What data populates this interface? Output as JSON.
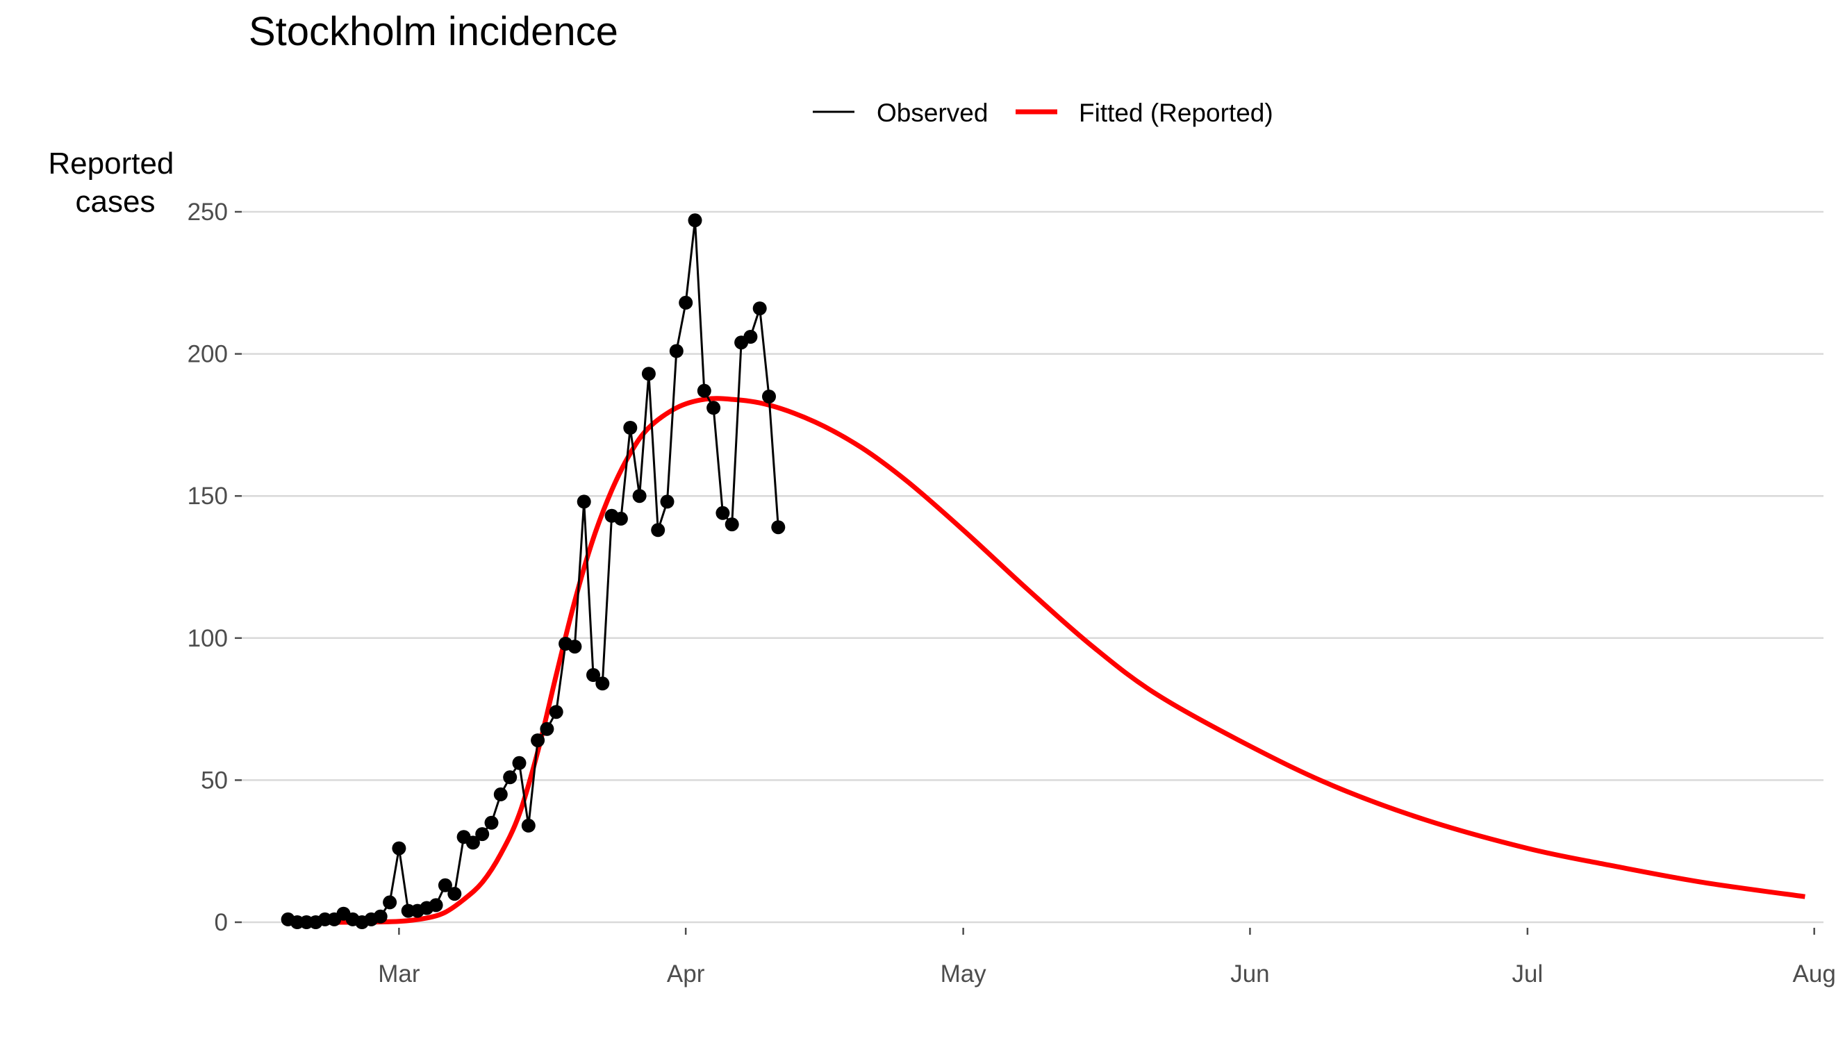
{
  "chart_data": {
    "type": "line",
    "title": "Stockholm incidence",
    "ylabel_lines": [
      "Reported",
      "cases"
    ],
    "xlabel": "",
    "ylim": [
      0,
      250
    ],
    "yticks": [
      0,
      50,
      100,
      150,
      200,
      250
    ],
    "xlim": [
      "2020-02-13",
      "2020-08-02"
    ],
    "xticks": [
      {
        "date": "2020-03-01",
        "label": "Mar"
      },
      {
        "date": "2020-04-01",
        "label": "Apr"
      },
      {
        "date": "2020-05-01",
        "label": "May"
      },
      {
        "date": "2020-06-01",
        "label": "Jun"
      },
      {
        "date": "2020-07-01",
        "label": "Jul"
      },
      {
        "date": "2020-08-01",
        "label": "Aug"
      }
    ],
    "grid": "horizontal",
    "legend_position": "top",
    "series": [
      {
        "name": "Observed",
        "style": "line+points",
        "color": "#000000",
        "points": [
          [
            "2020-02-18",
            1
          ],
          [
            "2020-02-19",
            0
          ],
          [
            "2020-02-20",
            0
          ],
          [
            "2020-02-21",
            0
          ],
          [
            "2020-02-22",
            1
          ],
          [
            "2020-02-23",
            1
          ],
          [
            "2020-02-24",
            3
          ],
          [
            "2020-02-25",
            1
          ],
          [
            "2020-02-26",
            0
          ],
          [
            "2020-02-27",
            1
          ],
          [
            "2020-02-28",
            2
          ],
          [
            "2020-02-29",
            7
          ],
          [
            "2020-03-01",
            26
          ],
          [
            "2020-03-02",
            4
          ],
          [
            "2020-03-03",
            4
          ],
          [
            "2020-03-04",
            5
          ],
          [
            "2020-03-05",
            6
          ],
          [
            "2020-03-06",
            13
          ],
          [
            "2020-03-07",
            10
          ],
          [
            "2020-03-08",
            30
          ],
          [
            "2020-03-09",
            28
          ],
          [
            "2020-03-10",
            31
          ],
          [
            "2020-03-11",
            35
          ],
          [
            "2020-03-12",
            45
          ],
          [
            "2020-03-13",
            51
          ],
          [
            "2020-03-14",
            56
          ],
          [
            "2020-03-15",
            34
          ],
          [
            "2020-03-16",
            64
          ],
          [
            "2020-03-17",
            68
          ],
          [
            "2020-03-18",
            74
          ],
          [
            "2020-03-19",
            98
          ],
          [
            "2020-03-20",
            97
          ],
          [
            "2020-03-21",
            148
          ],
          [
            "2020-03-22",
            87
          ],
          [
            "2020-03-23",
            84
          ],
          [
            "2020-03-24",
            143
          ],
          [
            "2020-03-25",
            142
          ],
          [
            "2020-03-26",
            174
          ],
          [
            "2020-03-27",
            150
          ],
          [
            "2020-03-28",
            193
          ],
          [
            "2020-03-29",
            138
          ],
          [
            "2020-03-30",
            148
          ],
          [
            "2020-03-31",
            201
          ],
          [
            "2020-04-01",
            218
          ],
          [
            "2020-04-02",
            247
          ],
          [
            "2020-04-03",
            187
          ],
          [
            "2020-04-04",
            181
          ],
          [
            "2020-04-05",
            144
          ],
          [
            "2020-04-06",
            140
          ],
          [
            "2020-04-07",
            204
          ],
          [
            "2020-04-08",
            206
          ],
          [
            "2020-04-09",
            216
          ],
          [
            "2020-04-10",
            185
          ],
          [
            "2020-04-11",
            139
          ]
        ]
      },
      {
        "name": "Fitted (Reported)",
        "style": "line",
        "color": "#ff0000",
        "points": [
          [
            "2020-02-18",
            0
          ],
          [
            "2020-02-25",
            0
          ],
          [
            "2020-03-01",
            0.3
          ],
          [
            "2020-03-04",
            1.5
          ],
          [
            "2020-03-06",
            3.5
          ],
          [
            "2020-03-08",
            8
          ],
          [
            "2020-03-10",
            14
          ],
          [
            "2020-03-12",
            24
          ],
          [
            "2020-03-14",
            38
          ],
          [
            "2020-03-16",
            60
          ],
          [
            "2020-03-18",
            87
          ],
          [
            "2020-03-20",
            113
          ],
          [
            "2020-03-22",
            135
          ],
          [
            "2020-03-24",
            152
          ],
          [
            "2020-03-26",
            165
          ],
          [
            "2020-03-28",
            174
          ],
          [
            "2020-03-31",
            181
          ],
          [
            "2020-04-03",
            184
          ],
          [
            "2020-04-06",
            184
          ],
          [
            "2020-04-10",
            182
          ],
          [
            "2020-04-15",
            176
          ],
          [
            "2020-04-20",
            167
          ],
          [
            "2020-04-25",
            155
          ],
          [
            "2020-05-01",
            138
          ],
          [
            "2020-05-08",
            117
          ],
          [
            "2020-05-15",
            97
          ],
          [
            "2020-05-22",
            80
          ],
          [
            "2020-06-01",
            62
          ],
          [
            "2020-06-10",
            48
          ],
          [
            "2020-06-20",
            36
          ],
          [
            "2020-07-01",
            26
          ],
          [
            "2020-07-10",
            20
          ],
          [
            "2020-07-20",
            14
          ],
          [
            "2020-07-31",
            9
          ]
        ]
      }
    ]
  }
}
